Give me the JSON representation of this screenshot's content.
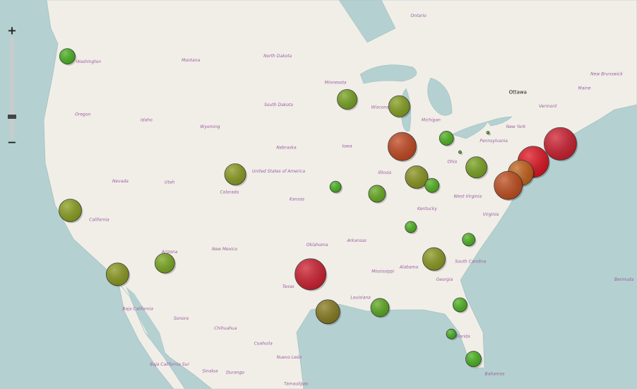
{
  "map": {
    "controls": {
      "zoom_in": "+",
      "zoom_out": "−"
    },
    "labels": [
      {
        "text": "Ottawa",
        "lat": 45.0,
        "lon": -75.6
      },
      {
        "text": "Ontario",
        "lat": 50.5,
        "lon": -85.9
      },
      {
        "text": "Washington",
        "lat": 47.2,
        "lon": -120.1
      },
      {
        "text": "Montana",
        "lat": 47.3,
        "lon": -109.5
      },
      {
        "text": "North Dakota",
        "lat": 47.6,
        "lon": -100.5
      },
      {
        "text": "Minnesota",
        "lat": 45.7,
        "lon": -94.5
      },
      {
        "text": "South Dakota",
        "lat": 44.1,
        "lon": -100.4
      },
      {
        "text": "Wisconsin",
        "lat": 43.9,
        "lon": -89.7
      },
      {
        "text": "Michigan",
        "lat": 43.0,
        "lon": -84.6
      },
      {
        "text": "Oregon",
        "lat": 43.4,
        "lon": -120.7
      },
      {
        "text": "Idaho",
        "lat": 43.0,
        "lon": -114.1
      },
      {
        "text": "Wyoming",
        "lat": 42.5,
        "lon": -107.5
      },
      {
        "text": "Nebraska",
        "lat": 41.0,
        "lon": -99.6
      },
      {
        "text": "Iowa",
        "lat": 41.1,
        "lon": -93.3
      },
      {
        "text": "Nevada",
        "lat": 38.6,
        "lon": -116.8
      },
      {
        "text": "Utah",
        "lat": 38.5,
        "lon": -111.7
      },
      {
        "text": "Colorado",
        "lat": 37.8,
        "lon": -105.5
      },
      {
        "text": "United States of America",
        "lat": 39.3,
        "lon": -100.4
      },
      {
        "text": "Kansas",
        "lat": 37.3,
        "lon": -98.5
      },
      {
        "text": "Illinois",
        "lat": 39.2,
        "lon": -89.4
      },
      {
        "text": "Ohio",
        "lat": 40.0,
        "lon": -82.4
      },
      {
        "text": "California",
        "lat": 35.8,
        "lon": -119.0
      },
      {
        "text": "Arizona",
        "lat": 33.5,
        "lon": -111.7
      },
      {
        "text": "New Mexico",
        "lat": 33.7,
        "lon": -106.0
      },
      {
        "text": "Oklahoma",
        "lat": 34.0,
        "lon": -96.4
      },
      {
        "text": "Arkansas",
        "lat": 34.3,
        "lon": -92.3
      },
      {
        "text": "Kentucky",
        "lat": 36.6,
        "lon": -85.0
      },
      {
        "text": "West Virginia",
        "lat": 37.5,
        "lon": -80.8
      },
      {
        "text": "Virginia",
        "lat": 36.2,
        "lon": -78.4
      },
      {
        "text": "Pennsylvania",
        "lat": 41.5,
        "lon": -78.1
      },
      {
        "text": "New York",
        "lat": 42.5,
        "lon": -75.8
      },
      {
        "text": "Vermont",
        "lat": 44.0,
        "lon": -72.5
      },
      {
        "text": "Maine",
        "lat": 45.3,
        "lon": -68.7
      },
      {
        "text": "New Brunswick",
        "lat": 46.3,
        "lon": -66.4
      },
      {
        "text": "Texas",
        "lat": 31.0,
        "lon": -99.4
      },
      {
        "text": "Mississippi",
        "lat": 32.1,
        "lon": -89.6
      },
      {
        "text": "Alabama",
        "lat": 32.4,
        "lon": -86.9
      },
      {
        "text": "Georgia",
        "lat": 31.5,
        "lon": -83.2
      },
      {
        "text": "South Carolina",
        "lat": 32.8,
        "lon": -80.5
      },
      {
        "text": "Louisiana",
        "lat": 30.2,
        "lon": -91.9
      },
      {
        "text": "Florida",
        "lat": 27.4,
        "lon": -81.3
      },
      {
        "text": "Bermuda",
        "lat": 31.5,
        "lon": -64.6
      },
      {
        "text": "Baja California",
        "lat": 29.4,
        "lon": -115.0
      },
      {
        "text": "Sonora",
        "lat": 28.7,
        "lon": -110.5
      },
      {
        "text": "Chihuahua",
        "lat": 28.0,
        "lon": -105.9
      },
      {
        "text": "Coahuila",
        "lat": 26.9,
        "lon": -102.0
      },
      {
        "text": "Nuevo León",
        "lat": 25.9,
        "lon": -99.3
      },
      {
        "text": "Baja California Sur",
        "lat": 25.4,
        "lon": -111.7
      },
      {
        "text": "Sinaloa",
        "lat": 24.9,
        "lon": -107.5
      },
      {
        "text": "Durango",
        "lat": 24.8,
        "lon": -104.9
      },
      {
        "text": "Tamaulipas",
        "lat": 24.0,
        "lon": -98.6
      },
      {
        "text": "Bahamas",
        "lat": 24.7,
        "lon": -78.0
      }
    ],
    "markers": [
      {
        "lat": 47.6,
        "lon": -122.3,
        "value": 11,
        "color": "#46b41c"
      },
      {
        "lat": 44.5,
        "lon": -93.3,
        "value": 14,
        "color": "#76a41c"
      },
      {
        "lat": 44.0,
        "lon": -87.9,
        "value": 15,
        "color": "#86a01a"
      },
      {
        "lat": 41.1,
        "lon": -87.6,
        "value": 20,
        "color": "#c4441c"
      },
      {
        "lat": 41.7,
        "lon": -83.0,
        "value": 10,
        "color": "#4cb41c"
      },
      {
        "lat": 42.1,
        "lon": -78.7,
        "value": 2,
        "color": "#4cb41c"
      },
      {
        "lat": 40.7,
        "lon": -81.6,
        "value": 2,
        "color": "#4cb41c"
      },
      {
        "lat": 39.6,
        "lon": -79.9,
        "value": 15,
        "color": "#78a41c"
      },
      {
        "lat": 39.1,
        "lon": -104.9,
        "value": 15,
        "color": "#8a9c1a"
      },
      {
        "lat": 38.2,
        "lon": -94.5,
        "value": 8,
        "color": "#46b41c"
      },
      {
        "lat": 37.7,
        "lon": -90.2,
        "value": 12,
        "color": "#66ac1c"
      },
      {
        "lat": 38.9,
        "lon": -86.1,
        "value": 16,
        "color": "#8a941a"
      },
      {
        "lat": 38.3,
        "lon": -84.5,
        "value": 10,
        "color": "#50b21c"
      },
      {
        "lat": 40.0,
        "lon": -74.0,
        "value": 22,
        "color": "#e2101e"
      },
      {
        "lat": 41.3,
        "lon": -71.2,
        "value": 23,
        "color": "#d01a2c"
      },
      {
        "lat": 39.2,
        "lon": -75.3,
        "value": 18,
        "color": "#c6641a"
      },
      {
        "lat": 38.3,
        "lon": -76.6,
        "value": 20,
        "color": "#c24c1a"
      },
      {
        "lat": 36.5,
        "lon": -122.0,
        "value": 16,
        "color": "#8aa01a"
      },
      {
        "lat": 35.3,
        "lon": -86.7,
        "value": 8,
        "color": "#4cb41c"
      },
      {
        "lat": 34.4,
        "lon": -80.7,
        "value": 9,
        "color": "#4cb41c"
      },
      {
        "lat": 33.0,
        "lon": -84.3,
        "value": 16,
        "color": "#8a9a1a"
      },
      {
        "lat": 31.9,
        "lon": -117.1,
        "value": 16,
        "color": "#8a9a1a"
      },
      {
        "lat": 32.7,
        "lon": -112.2,
        "value": 14,
        "color": "#78a81c"
      },
      {
        "lat": 31.9,
        "lon": -97.1,
        "value": 22,
        "color": "#d01a2a"
      },
      {
        "lat": 29.2,
        "lon": -95.3,
        "value": 17,
        "color": "#8a7a1a"
      },
      {
        "lat": 29.5,
        "lon": -89.9,
        "value": 13,
        "color": "#5aaa1c"
      },
      {
        "lat": 29.7,
        "lon": -81.6,
        "value": 10,
        "color": "#4cb41c"
      },
      {
        "lat": 27.6,
        "lon": -82.5,
        "value": 7,
        "color": "#46b41c"
      },
      {
        "lat": 25.8,
        "lon": -80.2,
        "value": 11,
        "color": "#46b41c"
      }
    ]
  }
}
